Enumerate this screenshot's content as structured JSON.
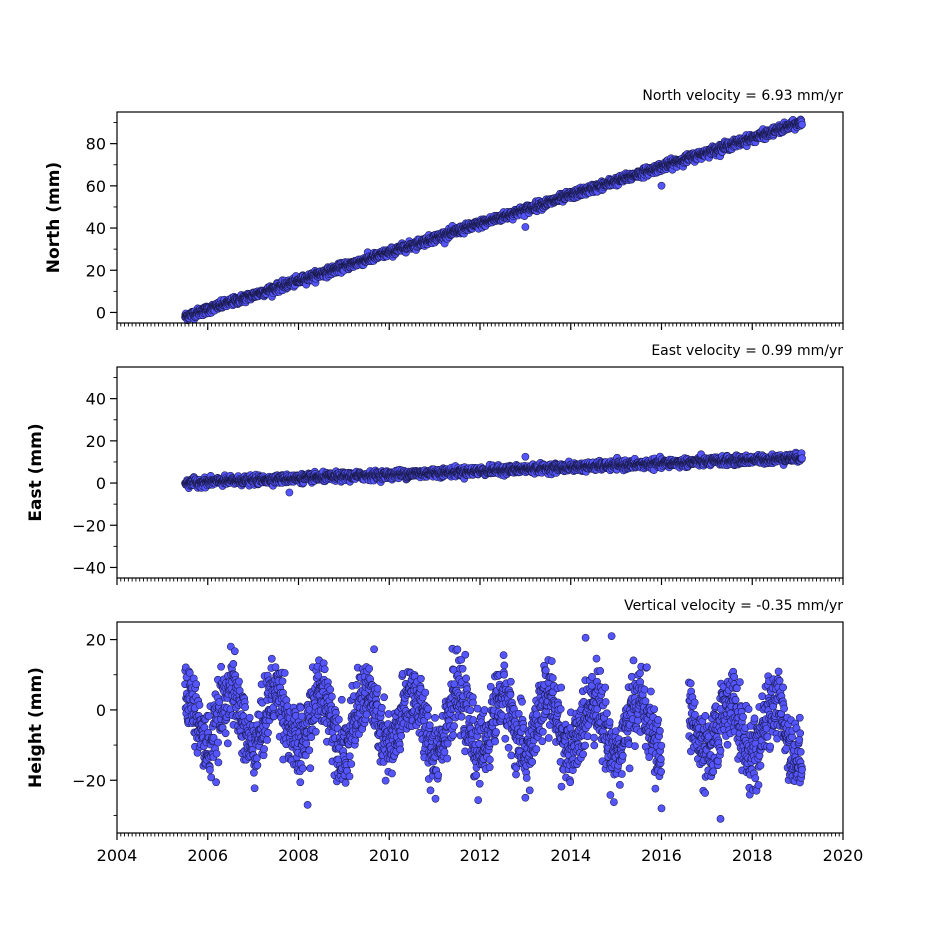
{
  "chart_data": [
    {
      "type": "scatter",
      "annotation": "North velocity = 6.93 mm/yr",
      "ylabel": "North (mm)",
      "xlim": [
        2004,
        2020
      ],
      "ylim": [
        -5,
        95
      ],
      "yticks": [
        0,
        20,
        40,
        60,
        80
      ],
      "xticks": [
        2004,
        2006,
        2008,
        2010,
        2012,
        2014,
        2016,
        2018,
        2020
      ],
      "show_x_tick_labels": false,
      "color": "#5555ff",
      "edge_color": "#1a1a4a",
      "trend": {
        "start_x": 2005.5,
        "start_y": -2,
        "end_x": 2019.1,
        "end_y": 90
      },
      "noise_mm": 1.0,
      "outliers": [
        {
          "x": 2013.0,
          "y": 40.5
        },
        {
          "x": 2016.0,
          "y": 60.0
        }
      ],
      "x_range": [
        2005.5,
        2019.1
      ]
    },
    {
      "type": "scatter",
      "annotation": "East velocity = 0.99 mm/yr",
      "ylabel": "East (mm)",
      "xlim": [
        2004,
        2020
      ],
      "ylim": [
        -45,
        55
      ],
      "yticks": [
        -40,
        -20,
        0,
        20,
        40
      ],
      "xticks": [
        2004,
        2006,
        2008,
        2010,
        2012,
        2014,
        2016,
        2018,
        2020
      ],
      "show_x_tick_labels": false,
      "color": "#5555ff",
      "edge_color": "#1a1a4a",
      "trend": {
        "start_x": 2005.5,
        "start_y": 0,
        "end_x": 2019.1,
        "end_y": 12
      },
      "noise_mm": 1.0,
      "outliers": [
        {
          "x": 2013.0,
          "y": 12.5
        },
        {
          "x": 2007.8,
          "y": -4.5
        }
      ],
      "x_range": [
        2005.5,
        2019.1
      ]
    },
    {
      "type": "scatter",
      "annotation": "Vertical velocity = -0.35 mm/yr",
      "ylabel": "Height (mm)",
      "xlim": [
        2004,
        2020
      ],
      "ylim": [
        -35,
        25
      ],
      "yticks": [
        -20,
        0,
        20
      ],
      "xticks": [
        2004,
        2006,
        2008,
        2010,
        2012,
        2014,
        2016,
        2018,
        2020
      ],
      "xtick_labels": [
        "2004",
        "2006",
        "2008",
        "2010",
        "2012",
        "2014",
        "2016",
        "2018",
        "2020"
      ],
      "show_x_tick_labels": true,
      "color": "#5555ff",
      "edge_color": "#1a1a4a",
      "trend": {
        "start_x": 2005.5,
        "start_y": -2,
        "end_x": 2019.1,
        "end_y": -6
      },
      "seasonal_amplitude_mm": 8,
      "noise_mm": 5,
      "gap": [
        2016.0,
        2016.6
      ],
      "outliers": [
        {
          "x": 2014.9,
          "y": 21
        },
        {
          "x": 2016.0,
          "y": -28
        },
        {
          "x": 2008.2,
          "y": -27
        },
        {
          "x": 2013.0,
          "y": -25
        },
        {
          "x": 2017.3,
          "y": -31
        }
      ],
      "x_range": [
        2005.5,
        2019.1
      ]
    }
  ]
}
